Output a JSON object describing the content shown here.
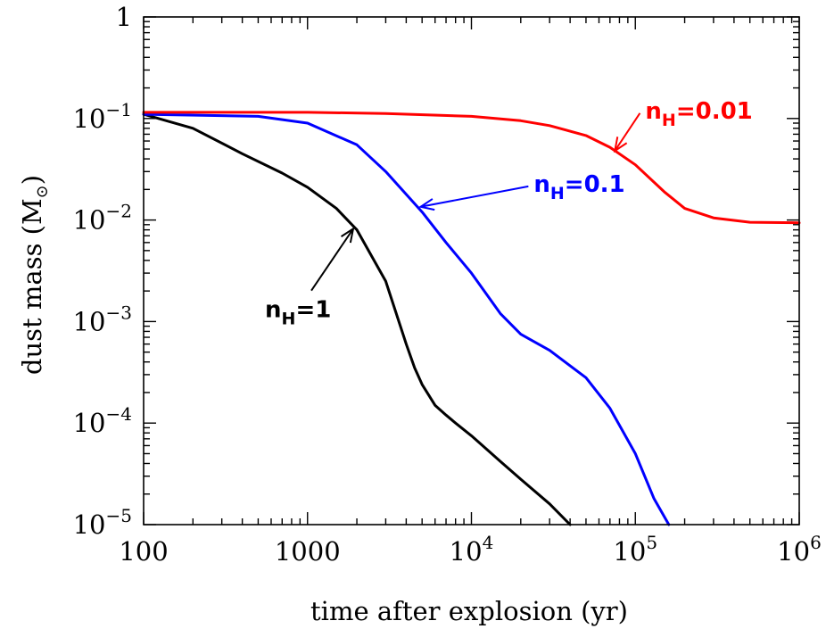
{
  "chart_data": {
    "type": "line",
    "title": "",
    "xlabel": "time after explosion (yr)",
    "ylabel": "dust mass (M",
    "ylabel_unit_symbol": "⊙",
    "x_scale": "log",
    "y_scale": "log",
    "xlim": [
      100,
      1000000
    ],
    "ylim": [
      1e-05,
      1
    ],
    "x_ticks": [
      {
        "value": 100,
        "label": "100"
      },
      {
        "value": 1000,
        "label": "1000"
      },
      {
        "value": 10000,
        "base": "10",
        "exp": "4"
      },
      {
        "value": 100000,
        "base": "10",
        "exp": "5"
      },
      {
        "value": 1000000,
        "base": "10",
        "exp": "6"
      }
    ],
    "y_ticks": [
      {
        "value": 1,
        "label": "1"
      },
      {
        "value": 0.1,
        "base": "10",
        "exp": "−1"
      },
      {
        "value": 0.01,
        "base": "10",
        "exp": "−2"
      },
      {
        "value": 0.001,
        "base": "10",
        "exp": "−3"
      },
      {
        "value": 0.0001,
        "base": "10",
        "exp": "−4"
      },
      {
        "value": 1e-05,
        "base": "10",
        "exp": "−5"
      }
    ],
    "grid": false,
    "legend": "none",
    "series": [
      {
        "color": "#000000",
        "x": [
          100,
          200,
          400,
          700,
          1000,
          1500,
          2000,
          3000,
          4000,
          4500,
          5000,
          6000,
          7000,
          8000,
          10000,
          15000,
          20000,
          30000,
          40000
        ],
        "y": [
          0.11,
          0.08,
          0.045,
          0.029,
          0.021,
          0.013,
          0.008,
          0.0025,
          0.0006,
          0.00035,
          0.00024,
          0.00015,
          0.00012,
          0.0001,
          7.5e-05,
          4.2e-05,
          2.8e-05,
          1.6e-05,
          1e-05
        ]
      },
      {
        "color": "#0000ff",
        "x": [
          100,
          500,
          1000,
          2000,
          3000,
          5000,
          7000,
          10000,
          15000,
          20000,
          30000,
          50000,
          70000,
          100000,
          130000,
          160000
        ],
        "y": [
          0.11,
          0.105,
          0.09,
          0.055,
          0.03,
          0.012,
          0.006,
          0.003,
          0.0012,
          0.00075,
          0.00052,
          0.00028,
          0.00014,
          5e-05,
          1.8e-05,
          1e-05
        ]
      },
      {
        "color": "#ff0000",
        "x": [
          100,
          1000,
          3000,
          10000,
          20000,
          30000,
          50000,
          70000,
          100000,
          150000,
          200000,
          300000,
          500000,
          1000000
        ],
        "y": [
          0.115,
          0.115,
          0.112,
          0.105,
          0.095,
          0.085,
          0.068,
          0.052,
          0.035,
          0.019,
          0.013,
          0.0105,
          0.0095,
          0.0094
        ]
      }
    ],
    "annotations": [
      {
        "base": "n",
        "sub": "H",
        "tail": "=0.01",
        "color": "#ff0000",
        "text_at": [
          115000,
          0.1
        ],
        "arrow_to": [
          75000,
          0.048
        ]
      },
      {
        "base": "n",
        "sub": "H",
        "tail": "=0.1",
        "color": "#0000ff",
        "text_at": [
          24000,
          0.019
        ],
        "arrow_to": [
          4900,
          0.0135
        ]
      },
      {
        "base": "n",
        "sub": "H",
        "tail": "=1",
        "color": "#000000",
        "text_at": [
          550,
          0.0011
        ],
        "arrow_to": [
          1900,
          0.0082
        ]
      }
    ]
  }
}
